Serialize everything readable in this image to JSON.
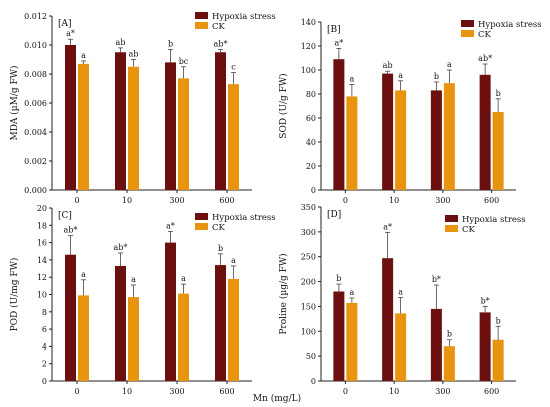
{
  "figure": {
    "shared_xlabel": "Mn (mg/L)",
    "colors": {
      "hypoxia": "#6b0f0f",
      "ck": "#e8940f",
      "axis": "#222222"
    }
  },
  "chart_data": [
    {
      "type": "bar",
      "panel_label": "[A]",
      "title": "",
      "categories": [
        "0",
        "10",
        "300",
        "600"
      ],
      "xlabel": "",
      "ylabel": "MDA (µM/g FW)",
      "ylim": [
        0,
        0.012
      ],
      "yticks": [
        0,
        0.002,
        0.004,
        0.006,
        0.008,
        0.01,
        0.012
      ],
      "ytick_labels": [
        "0.000",
        "0.002",
        "0.004",
        "0.006",
        "0.008",
        "0.010",
        "0.012"
      ],
      "legend": "top-right",
      "grid": false,
      "series": [
        {
          "name": "Hypoxia stress",
          "values": [
            0.01,
            0.0095,
            0.0088,
            0.0095
          ],
          "errors": [
            0.0004,
            0.0003,
            0.0009,
            0.0002
          ],
          "labels": [
            "a*",
            "ab",
            "b",
            "ab*"
          ]
        },
        {
          "name": "CK",
          "values": [
            0.0087,
            0.0085,
            0.0077,
            0.0073
          ],
          "errors": [
            0.0002,
            0.0005,
            0.0008,
            0.0008
          ],
          "labels": [
            "a",
            "ab",
            "bc",
            "c"
          ]
        }
      ]
    },
    {
      "type": "bar",
      "panel_label": "[B]",
      "title": "",
      "categories": [
        "0",
        "10",
        "300",
        "600"
      ],
      "xlabel": "",
      "ylabel": "SOD (U/g FW)",
      "ylim": [
        0,
        140
      ],
      "yticks": [
        0,
        20,
        40,
        60,
        80,
        100,
        120,
        140
      ],
      "ytick_labels": [
        "0",
        "20",
        "40",
        "60",
        "80",
        "100",
        "120",
        "140"
      ],
      "legend": "top-right",
      "grid": false,
      "series": [
        {
          "name": "Hypoxia stress",
          "values": [
            109,
            97,
            83,
            96
          ],
          "errors": [
            9,
            2,
            7,
            9
          ],
          "labels": [
            "a*",
            "ab",
            "b",
            "ab*"
          ]
        },
        {
          "name": "CK",
          "values": [
            78,
            83,
            89,
            65
          ],
          "errors": [
            10,
            8,
            11,
            11
          ],
          "labels": [
            "a",
            "a",
            "a",
            "b"
          ]
        }
      ]
    },
    {
      "type": "bar",
      "panel_label": "[C]",
      "title": "",
      "categories": [
        "0",
        "10",
        "300",
        "600"
      ],
      "xlabel": "",
      "ylabel": "POD (U/mg FW)",
      "ylim": [
        0,
        20
      ],
      "yticks": [
        0,
        2,
        4,
        6,
        8,
        10,
        12,
        14,
        16,
        18,
        20
      ],
      "ytick_labels": [
        "0",
        "2",
        "4",
        "6",
        "8",
        "10",
        "12",
        "14",
        "16",
        "18",
        "20"
      ],
      "legend": "top-right",
      "grid": false,
      "series": [
        {
          "name": "Hypoxia stress",
          "values": [
            14.6,
            13.3,
            16.0,
            13.4
          ],
          "errors": [
            2.2,
            1.5,
            1.3,
            1.3
          ],
          "labels": [
            "ab*",
            "ab*",
            "a*",
            "b"
          ]
        },
        {
          "name": "CK",
          "values": [
            9.9,
            9.7,
            10.1,
            11.8
          ],
          "errors": [
            1.8,
            1.4,
            1.1,
            1.5
          ],
          "labels": [
            "a",
            "a",
            "a",
            "a"
          ]
        }
      ]
    },
    {
      "type": "bar",
      "panel_label": "[D]",
      "title": "",
      "categories": [
        "0",
        "10",
        "300",
        "600"
      ],
      "xlabel": "",
      "ylabel": "Proline (µg/g FW)",
      "ylim": [
        0,
        350
      ],
      "yticks": [
        0,
        50,
        100,
        150,
        200,
        250,
        300,
        350
      ],
      "ytick_labels": [
        "0",
        "50",
        "100",
        "150",
        "200",
        "250",
        "300",
        "350"
      ],
      "legend": "top-right",
      "grid": false,
      "series": [
        {
          "name": "Hypoxia stress",
          "values": [
            180,
            247,
            145,
            138
          ],
          "errors": [
            15,
            52,
            48,
            12
          ],
          "labels": [
            "b",
            "a*",
            "b*",
            "b*"
          ]
        },
        {
          "name": "CK",
          "values": [
            157,
            136,
            70,
            83
          ],
          "errors": [
            10,
            32,
            13,
            27
          ],
          "labels": [
            "a",
            "a",
            "b",
            "b"
          ]
        }
      ]
    }
  ]
}
